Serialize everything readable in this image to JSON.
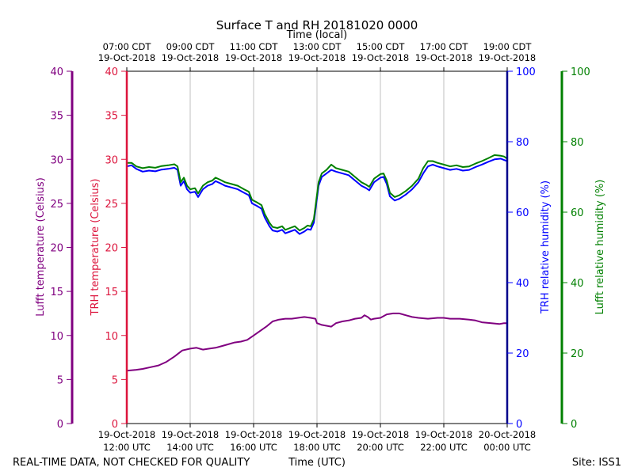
{
  "chart_data": {
    "type": "line",
    "title": "Surface T and RH 20181020 0000",
    "top_axis_label": "Time (local)",
    "xlabel": "Time (UTC)",
    "footer_left": "REAL-TIME DATA, NOT CHECKED FOR QUALITY",
    "footer_right": "Site: ISS1",
    "x_range_hours_utc": [
      12,
      24
    ],
    "bottom_ticks": [
      {
        "h": 12,
        "l1": "19-Oct-2018",
        "l2": "12:00 UTC"
      },
      {
        "h": 14,
        "l1": "19-Oct-2018",
        "l2": "14:00 UTC"
      },
      {
        "h": 16,
        "l1": "19-Oct-2018",
        "l2": "16:00 UTC"
      },
      {
        "h": 18,
        "l1": "19-Oct-2018",
        "l2": "18:00 UTC"
      },
      {
        "h": 20,
        "l1": "19-Oct-2018",
        "l2": "20:00 UTC"
      },
      {
        "h": 22,
        "l1": "19-Oct-2018",
        "l2": "22:00 UTC"
      },
      {
        "h": 24,
        "l1": "20-Oct-2018",
        "l2": "00:00 UTC"
      }
    ],
    "top_ticks": [
      {
        "h": 12,
        "l1": "07:00 CDT",
        "l2": "19-Oct-2018"
      },
      {
        "h": 14,
        "l1": "09:00 CDT",
        "l2": "19-Oct-2018"
      },
      {
        "h": 16,
        "l1": "11:00 CDT",
        "l2": "19-Oct-2018"
      },
      {
        "h": 18,
        "l1": "13:00 CDT",
        "l2": "19-Oct-2018"
      },
      {
        "h": 20,
        "l1": "15:00 CDT",
        "l2": "19-Oct-2018"
      },
      {
        "h": 22,
        "l1": "17:00 CDT",
        "l2": "19-Oct-2018"
      },
      {
        "h": 24,
        "l1": "19:00 CDT",
        "l2": "19-Oct-2018"
      }
    ],
    "grid_x": true,
    "axes": {
      "lufft_temp": {
        "label": "Lufft temperature (Celsius)",
        "color": "#800080",
        "ylim": [
          0,
          40
        ],
        "ticks": [
          0,
          5,
          10,
          15,
          20,
          25,
          30,
          35,
          40
        ]
      },
      "trh_temp": {
        "label": "TRH temperature (Celsius)",
        "color": "#dc143c",
        "ylim": [
          0,
          40
        ],
        "ticks": [
          0,
          5,
          10,
          15,
          20,
          25,
          30,
          35,
          40
        ]
      },
      "trh_rh": {
        "label": "TRH relative humidity (%)",
        "color": "#0000ff",
        "ylim": [
          0,
          100
        ],
        "ticks": [
          0,
          20,
          40,
          60,
          80,
          100
        ]
      },
      "lufft_rh": {
        "label": "Lufft relative humidity (%)",
        "color": "#008000",
        "ylim": [
          0,
          100
        ],
        "ticks": [
          0,
          20,
          40,
          60,
          80,
          100
        ]
      }
    },
    "series": [
      {
        "axis": "lufft_temp",
        "color": "#800080",
        "points": [
          [
            12.0,
            6.0
          ],
          [
            12.3,
            6.1
          ],
          [
            12.5,
            6.2
          ],
          [
            12.75,
            6.4
          ],
          [
            13.0,
            6.6
          ],
          [
            13.25,
            7.0
          ],
          [
            13.5,
            7.6
          ],
          [
            13.75,
            8.3
          ],
          [
            14.0,
            8.5
          ],
          [
            14.2,
            8.6
          ],
          [
            14.4,
            8.4
          ],
          [
            14.6,
            8.5
          ],
          [
            14.8,
            8.6
          ],
          [
            15.0,
            8.8
          ],
          [
            15.2,
            9.0
          ],
          [
            15.4,
            9.2
          ],
          [
            15.6,
            9.3
          ],
          [
            15.8,
            9.5
          ],
          [
            16.0,
            10.0
          ],
          [
            16.2,
            10.5
          ],
          [
            16.4,
            11.0
          ],
          [
            16.6,
            11.6
          ],
          [
            16.8,
            11.8
          ],
          [
            17.0,
            11.9
          ],
          [
            17.2,
            11.9
          ],
          [
            17.4,
            12.0
          ],
          [
            17.6,
            12.1
          ],
          [
            17.8,
            12.0
          ],
          [
            17.95,
            11.9
          ],
          [
            18.0,
            11.4
          ],
          [
            18.15,
            11.2
          ],
          [
            18.3,
            11.1
          ],
          [
            18.45,
            11.0
          ],
          [
            18.6,
            11.4
          ],
          [
            18.8,
            11.6
          ],
          [
            19.0,
            11.7
          ],
          [
            19.2,
            11.9
          ],
          [
            19.4,
            12.0
          ],
          [
            19.5,
            12.3
          ],
          [
            19.6,
            12.1
          ],
          [
            19.7,
            11.8
          ],
          [
            19.8,
            11.9
          ],
          [
            20.0,
            12.0
          ],
          [
            20.2,
            12.4
          ],
          [
            20.4,
            12.5
          ],
          [
            20.6,
            12.5
          ],
          [
            20.8,
            12.3
          ],
          [
            21.0,
            12.1
          ],
          [
            21.2,
            12.0
          ],
          [
            21.5,
            11.9
          ],
          [
            21.8,
            12.0
          ],
          [
            22.0,
            12.0
          ],
          [
            22.2,
            11.9
          ],
          [
            22.5,
            11.9
          ],
          [
            22.8,
            11.8
          ],
          [
            23.0,
            11.7
          ],
          [
            23.2,
            11.5
          ],
          [
            23.5,
            11.4
          ],
          [
            23.75,
            11.3
          ],
          [
            23.9,
            11.4
          ],
          [
            24.0,
            11.4
          ]
        ]
      },
      {
        "axis": "trh_rh",
        "color": "#0000ff",
        "points": [
          [
            12.0,
            73.0
          ],
          [
            12.15,
            73.3
          ],
          [
            12.3,
            72.3
          ],
          [
            12.5,
            71.5
          ],
          [
            12.7,
            71.8
          ],
          [
            12.9,
            71.6
          ],
          [
            13.1,
            72.1
          ],
          [
            13.3,
            72.3
          ],
          [
            13.5,
            72.6
          ],
          [
            13.6,
            72.0
          ],
          [
            13.7,
            67.5
          ],
          [
            13.8,
            68.8
          ],
          [
            13.9,
            66.5
          ],
          [
            14.0,
            65.5
          ],
          [
            14.15,
            65.8
          ],
          [
            14.25,
            64.3
          ],
          [
            14.4,
            66.5
          ],
          [
            14.55,
            67.5
          ],
          [
            14.7,
            68.0
          ],
          [
            14.8,
            68.8
          ],
          [
            14.95,
            68.2
          ],
          [
            15.1,
            67.5
          ],
          [
            15.3,
            67.0
          ],
          [
            15.5,
            66.5
          ],
          [
            15.7,
            65.5
          ],
          [
            15.85,
            64.8
          ],
          [
            15.95,
            62.5
          ],
          [
            16.1,
            61.8
          ],
          [
            16.25,
            61.0
          ],
          [
            16.35,
            58.5
          ],
          [
            16.5,
            56.0
          ],
          [
            16.6,
            54.8
          ],
          [
            16.75,
            54.5
          ],
          [
            16.9,
            55.0
          ],
          [
            17.0,
            54.0
          ],
          [
            17.15,
            54.5
          ],
          [
            17.3,
            55.0
          ],
          [
            17.45,
            53.8
          ],
          [
            17.6,
            54.5
          ],
          [
            17.7,
            55.2
          ],
          [
            17.8,
            55.0
          ],
          [
            17.9,
            57.0
          ],
          [
            18.0,
            64.0
          ],
          [
            18.05,
            67.5
          ],
          [
            18.15,
            70.0
          ],
          [
            18.3,
            71.0
          ],
          [
            18.45,
            72.0
          ],
          [
            18.6,
            71.5
          ],
          [
            18.8,
            71.0
          ],
          [
            19.0,
            70.5
          ],
          [
            19.2,
            69.0
          ],
          [
            19.4,
            67.5
          ],
          [
            19.55,
            66.8
          ],
          [
            19.65,
            66.2
          ],
          [
            19.8,
            68.5
          ],
          [
            20.0,
            69.8
          ],
          [
            20.1,
            70.0
          ],
          [
            20.2,
            68.0
          ],
          [
            20.3,
            64.5
          ],
          [
            20.45,
            63.3
          ],
          [
            20.6,
            63.8
          ],
          [
            20.8,
            65.0
          ],
          [
            21.0,
            66.5
          ],
          [
            21.2,
            68.5
          ],
          [
            21.35,
            71.0
          ],
          [
            21.5,
            73.0
          ],
          [
            21.65,
            73.5
          ],
          [
            21.8,
            73.0
          ],
          [
            22.0,
            72.5
          ],
          [
            22.2,
            72.0
          ],
          [
            22.4,
            72.3
          ],
          [
            22.6,
            71.8
          ],
          [
            22.8,
            72.0
          ],
          [
            23.0,
            72.8
          ],
          [
            23.2,
            73.5
          ],
          [
            23.4,
            74.3
          ],
          [
            23.6,
            75.0
          ],
          [
            23.8,
            75.2
          ],
          [
            23.9,
            74.8
          ],
          [
            24.0,
            74.5
          ]
        ]
      },
      {
        "axis": "lufft_rh",
        "color": "#008000",
        "points": [
          [
            12.0,
            74.0
          ],
          [
            12.15,
            74.0
          ],
          [
            12.3,
            73.0
          ],
          [
            12.5,
            72.5
          ],
          [
            12.7,
            72.8
          ],
          [
            12.9,
            72.6
          ],
          [
            13.1,
            73.1
          ],
          [
            13.3,
            73.3
          ],
          [
            13.5,
            73.6
          ],
          [
            13.6,
            73.0
          ],
          [
            13.7,
            68.5
          ],
          [
            13.8,
            69.8
          ],
          [
            13.9,
            67.5
          ],
          [
            14.0,
            66.5
          ],
          [
            14.15,
            66.8
          ],
          [
            14.25,
            65.3
          ],
          [
            14.4,
            67.5
          ],
          [
            14.55,
            68.5
          ],
          [
            14.7,
            69.0
          ],
          [
            14.8,
            69.8
          ],
          [
            14.95,
            69.2
          ],
          [
            15.1,
            68.5
          ],
          [
            15.3,
            68.0
          ],
          [
            15.5,
            67.5
          ],
          [
            15.7,
            66.5
          ],
          [
            15.85,
            65.8
          ],
          [
            15.95,
            63.5
          ],
          [
            16.1,
            62.8
          ],
          [
            16.25,
            62.0
          ],
          [
            16.35,
            59.5
          ],
          [
            16.5,
            57.0
          ],
          [
            16.6,
            55.8
          ],
          [
            16.75,
            55.5
          ],
          [
            16.9,
            56.0
          ],
          [
            17.0,
            55.0
          ],
          [
            17.15,
            55.5
          ],
          [
            17.3,
            56.0
          ],
          [
            17.45,
            54.8
          ],
          [
            17.6,
            55.5
          ],
          [
            17.7,
            56.2
          ],
          [
            17.8,
            56.0
          ],
          [
            17.9,
            58.0
          ],
          [
            18.0,
            65.0
          ],
          [
            18.05,
            68.5
          ],
          [
            18.15,
            71.0
          ],
          [
            18.3,
            72.0
          ],
          [
            18.45,
            73.5
          ],
          [
            18.6,
            72.5
          ],
          [
            18.8,
            72.0
          ],
          [
            19.0,
            71.5
          ],
          [
            19.2,
            70.0
          ],
          [
            19.4,
            68.5
          ],
          [
            19.55,
            67.8
          ],
          [
            19.65,
            67.2
          ],
          [
            19.8,
            69.5
          ],
          [
            20.0,
            70.8
          ],
          [
            20.1,
            71.0
          ],
          [
            20.2,
            69.0
          ],
          [
            20.3,
            65.5
          ],
          [
            20.45,
            64.3
          ],
          [
            20.6,
            64.8
          ],
          [
            20.8,
            66.0
          ],
          [
            21.0,
            67.5
          ],
          [
            21.2,
            69.5
          ],
          [
            21.35,
            72.5
          ],
          [
            21.5,
            74.5
          ],
          [
            21.65,
            74.5
          ],
          [
            21.8,
            74.0
          ],
          [
            22.0,
            73.5
          ],
          [
            22.2,
            73.0
          ],
          [
            22.4,
            73.3
          ],
          [
            22.6,
            72.8
          ],
          [
            22.8,
            73.0
          ],
          [
            23.0,
            73.8
          ],
          [
            23.2,
            74.5
          ],
          [
            23.4,
            75.3
          ],
          [
            23.6,
            76.2
          ],
          [
            23.8,
            76.0
          ],
          [
            23.9,
            75.8
          ],
          [
            24.0,
            75.2
          ]
        ]
      }
    ]
  }
}
